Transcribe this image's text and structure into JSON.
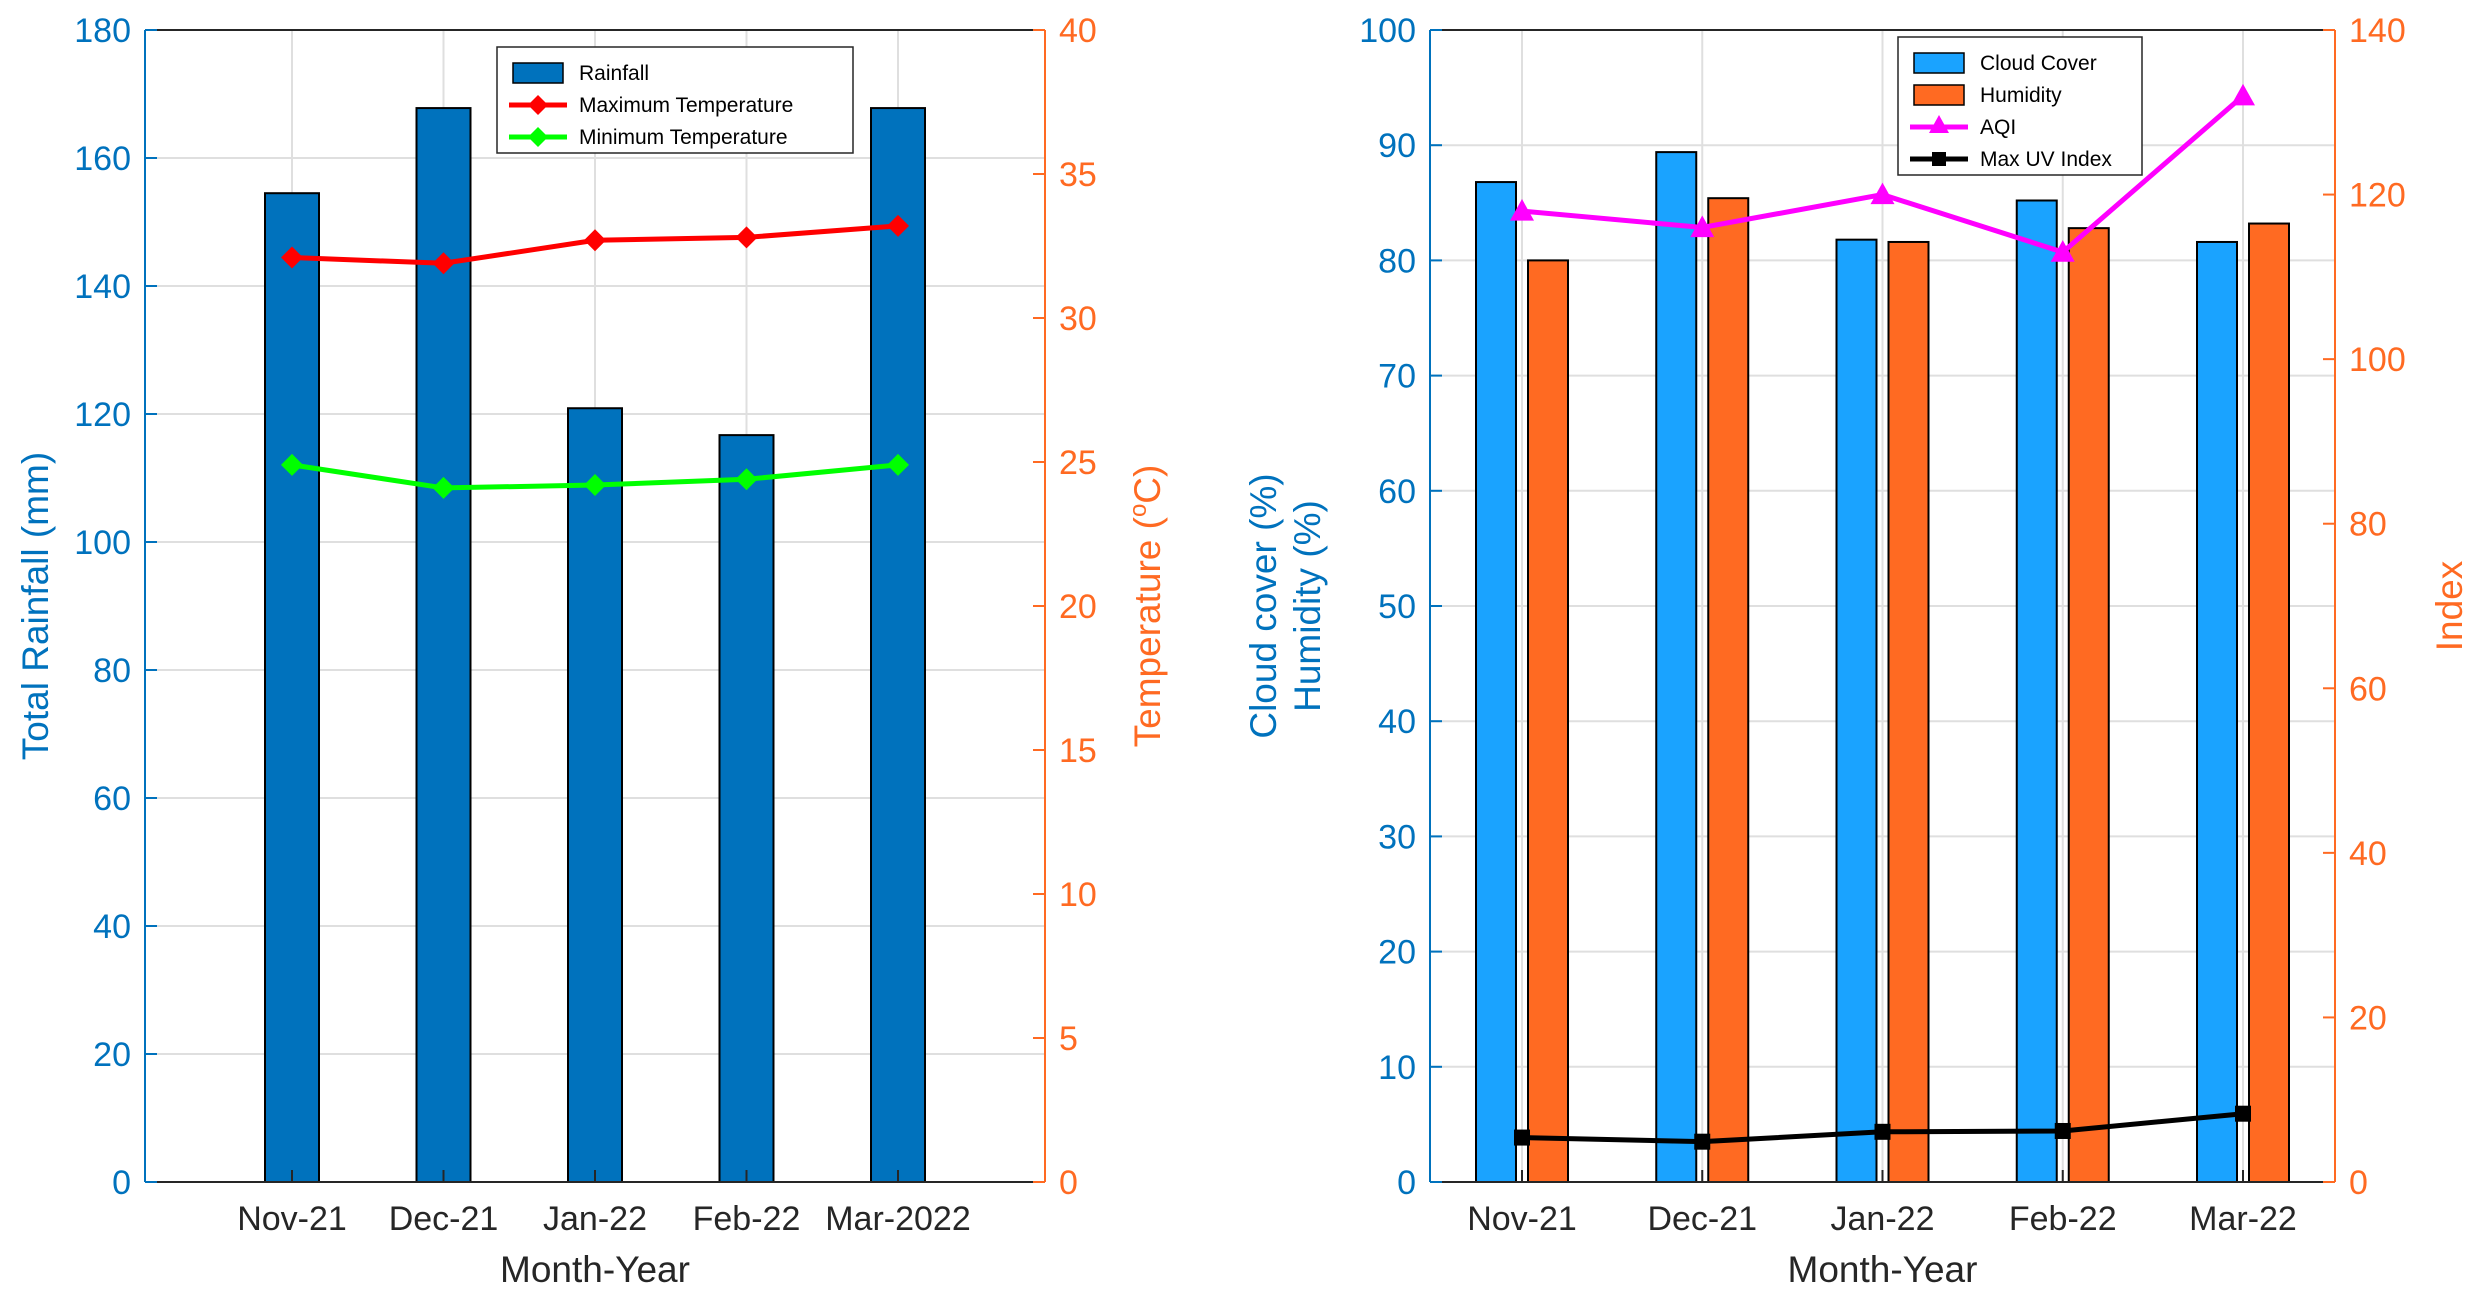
{
  "chart_data": [
    {
      "type": "bar",
      "categories": [
        "Nov-21",
        "Dec-21",
        "Jan-22",
        "Feb-22",
        "Mar-2022"
      ],
      "xlabel": "Month-Year",
      "ylabel_left": "Total Rainfall (mm)",
      "ylabel_right": "Temperature (",
      "ylabel_right_sup": "o",
      "ylabel_right_end": "C)",
      "ylim_left": [
        0,
        180
      ],
      "yticks_left": [
        0,
        20,
        40,
        60,
        80,
        100,
        120,
        140,
        160,
        180
      ],
      "ylim_right": [
        0,
        40
      ],
      "yticks_right": [
        0,
        5,
        10,
        15,
        20,
        25,
        30,
        35,
        40
      ],
      "grid": true,
      "legend_position": "top-right",
      "series": [
        {
          "name": "Rainfall",
          "kind": "bar",
          "axis": "left",
          "color": "#0072BD",
          "values": [
            154.5,
            167.8,
            120.9,
            116.7,
            167.8
          ]
        },
        {
          "name": "Maximum Temperature",
          "kind": "line",
          "marker": "diamond",
          "axis": "right",
          "color": "#FF0000",
          "values": [
            32.1,
            31.9,
            32.7,
            32.8,
            33.2
          ]
        },
        {
          "name": "Minimum Temperature",
          "kind": "line",
          "marker": "diamond",
          "axis": "right",
          "color": "#00FF00",
          "values": [
            24.9,
            24.1,
            24.2,
            24.4,
            24.9
          ]
        }
      ]
    },
    {
      "type": "bar",
      "categories": [
        "Nov-21",
        "Dec-21",
        "Jan-22",
        "Feb-22",
        "Mar-22"
      ],
      "xlabel": "Month-Year",
      "ylabel_left_line1": "Cloud cover (%)",
      "ylabel_left_line2": "Humidity (%)",
      "ylabel_right": "Index",
      "ylim_left": [
        0,
        100
      ],
      "yticks_left": [
        0,
        10,
        20,
        30,
        40,
        50,
        60,
        70,
        80,
        90,
        100
      ],
      "ylim_right": [
        0,
        140
      ],
      "yticks_right": [
        0,
        20,
        40,
        60,
        80,
        100,
        120,
        140
      ],
      "grid": true,
      "legend_position": "top-right",
      "series": [
        {
          "name": "Cloud Cover",
          "kind": "bar",
          "axis": "left",
          "color": "#1AA3FF",
          "values": [
            86.8,
            89.4,
            81.8,
            85.2,
            81.6
          ]
        },
        {
          "name": "Humidity",
          "kind": "bar",
          "axis": "left",
          "color": "#FF6A22",
          "values": [
            80.0,
            85.4,
            81.6,
            82.8,
            83.2
          ]
        },
        {
          "name": "AQI",
          "kind": "line",
          "marker": "triangle",
          "axis": "right",
          "color": "#FF00FF",
          "values": [
            118,
            116,
            120,
            113,
            132
          ]
        },
        {
          "name": "Max UV Index",
          "kind": "line",
          "marker": "square",
          "axis": "right",
          "color": "#000000",
          "values": [
            5.4,
            4.9,
            6.1,
            6.2,
            8.3
          ]
        }
      ]
    }
  ]
}
